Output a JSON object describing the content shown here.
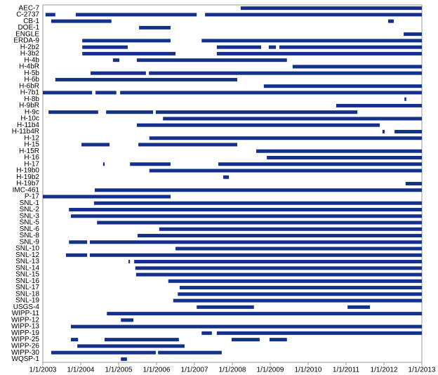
{
  "chart_data": {
    "type": "timeline",
    "color": "#13318a",
    "xlim": [
      2003,
      2013
    ],
    "xticks": [
      {
        "value": 2003,
        "label": "1/1/2003"
      },
      {
        "value": 2004,
        "label": "1/1/2004"
      },
      {
        "value": 2005,
        "label": "1/1/2005"
      },
      {
        "value": 2006,
        "label": "1/1/2006"
      },
      {
        "value": 2007,
        "label": "1/1/2007"
      },
      {
        "value": 2008,
        "label": "1/1/2008"
      },
      {
        "value": 2009,
        "label": "1/1/2009"
      },
      {
        "value": 2010,
        "label": "1/1/2010"
      },
      {
        "value": 2011,
        "label": "1/1/2011"
      },
      {
        "value": 2012,
        "label": "1/1/2012"
      },
      {
        "value": 2013,
        "label": "1/1/2013"
      }
    ],
    "categories": [
      "AEC-7",
      "C-2737",
      "CB-1",
      "DOE-1",
      "ENGLE",
      "ERDA-9",
      "H-2b2",
      "H-3b2",
      "H-4b",
      "H-4bR",
      "H-5b",
      "H-6b",
      "H-6bR",
      "H-7b1",
      "H-8b",
      "H-9bR",
      "H-9c",
      "H-10c",
      "H-11b4",
      "H-11b4R",
      "H-12",
      "H-15",
      "H-15R",
      "H-16",
      "H-17",
      "H-19b0",
      "H-19b2",
      "H-19b7",
      "IMC-461",
      "P-17",
      "SNL-1",
      "SNL-2",
      "SNL-3",
      "SNL-5",
      "SNL-6",
      "SNL-8",
      "SNL-9",
      "SNL-10",
      "SNL-12",
      "SNL-13",
      "SNL-14",
      "SNL-15",
      "SNL-16",
      "SNL-17",
      "SNL-18",
      "SNL-19",
      "USGS-4",
      "WIPP-11",
      "WIPP-12",
      "WIPP-13",
      "WIPP-19",
      "WIPP-25",
      "WIPP-26",
      "WIPP-30",
      "WQSP-1"
    ],
    "segments": [
      [
        [
          2008.22,
          2013
        ]
      ],
      [
        [
          2003.07,
          2003.33
        ],
        [
          2003.87,
          2007.06
        ],
        [
          2007.28,
          2013
        ]
      ],
      [
        [
          2003.22,
          2004.81
        ],
        [
          2012.11,
          2012.26
        ]
      ],
      [
        [
          2005.54,
          2006.37
        ]
      ],
      [
        [
          2012.52,
          2013
        ]
      ],
      [
        [
          2004.04,
          2006.37
        ],
        [
          2007.19,
          2013
        ]
      ],
      [
        [
          2004.04,
          2005.24
        ],
        [
          2007.59,
          2008.76
        ],
        [
          2008.96,
          2009.15
        ],
        [
          2009.24,
          2013
        ]
      ],
      [
        [
          2004.04,
          2006.5
        ],
        [
          2007.59,
          2013
        ]
      ],
      [
        [
          2004.85,
          2005.02
        ],
        [
          2005.48,
          2009.44
        ]
      ],
      [
        [
          2009.59,
          2013
        ]
      ],
      [
        [
          2004.26,
          2005.72
        ],
        [
          2005.8,
          2013
        ]
      ],
      [
        [
          2003.33,
          2008.13
        ]
      ],
      [
        [
          2008.83,
          2013
        ]
      ],
      [
        [
          2003,
          2004.3
        ],
        [
          2004.39,
          2004.94
        ],
        [
          2005.04,
          2013
        ]
      ],
      [
        [
          2012.54,
          2012.59
        ]
      ],
      [
        [
          2010.74,
          2013
        ]
      ],
      [
        [
          2003.15,
          2004.46
        ],
        [
          2004.67,
          2005.91
        ],
        [
          2005.98,
          2011.3
        ]
      ],
      [
        [
          2006.17,
          2013
        ]
      ],
      [
        [
          2005.48,
          2011.89
        ]
      ],
      [
        [
          2011.96,
          2012.02
        ],
        [
          2012.28,
          2013
        ]
      ],
      [
        [
          2005.81,
          2013
        ]
      ],
      [
        [
          2004.02,
          2004.76
        ],
        [
          2005.52,
          2008.13
        ]
      ],
      [
        [
          2008.63,
          2013
        ]
      ],
      [
        [
          2008.91,
          2013
        ]
      ],
      [
        [
          2004.59,
          2004.63
        ],
        [
          2005.3,
          2006.37
        ],
        [
          2007.63,
          2013
        ]
      ],
      [
        [
          2005.81,
          2013
        ]
      ],
      [
        [
          2007.76,
          2007.91
        ]
      ],
      [
        [
          2012.57,
          2013
        ]
      ],
      [
        [
          2004.37,
          2013
        ]
      ],
      [
        [
          2003,
          2006.37
        ]
      ],
      [
        [
          2004.35,
          2013
        ]
      ],
      [
        [
          2003.69,
          2013
        ]
      ],
      [
        [
          2003.74,
          2013
        ]
      ],
      [
        [
          2004.43,
          2013
        ]
      ],
      [
        [
          2006.07,
          2013
        ]
      ],
      [
        [
          2005.5,
          2013
        ]
      ],
      [
        [
          2003.69,
          2004.17
        ],
        [
          2004.24,
          2013
        ]
      ],
      [
        [
          2006.5,
          2013
        ]
      ],
      [
        [
          2003.61,
          2004.17
        ],
        [
          2004.24,
          2013
        ]
      ],
      [
        [
          2005.26,
          2005.3
        ],
        [
          2005.41,
          2013
        ]
      ],
      [
        [
          2005.44,
          2013
        ]
      ],
      [
        [
          2005.46,
          2013
        ]
      ],
      [
        [
          2006.31,
          2013
        ]
      ],
      [
        [
          2006.61,
          2013
        ]
      ],
      [
        [
          2006.56,
          2013
        ]
      ],
      [
        [
          2006.44,
          2013
        ]
      ],
      [
        [
          2007.06,
          2008.57
        ],
        [
          2011.04,
          2011.63
        ]
      ],
      [
        [
          2004.69,
          2013
        ]
      ],
      [
        [
          2005.06,
          2005.39
        ]
      ],
      [
        [
          2003.74,
          2013
        ]
      ],
      [
        [
          2007.19,
          2007.46
        ],
        [
          2007.59,
          2013
        ]
      ],
      [
        [
          2003.74,
          2003.93
        ],
        [
          2004.63,
          2006.59
        ],
        [
          2007.98,
          2008.72
        ],
        [
          2008.98,
          2009.44
        ]
      ],
      [
        [
          2003.91,
          2006.74
        ]
      ],
      [
        [
          2003.22,
          2005.98
        ],
        [
          2006.04,
          2007.72
        ]
      ],
      [
        [
          2005.06,
          2005.22
        ]
      ]
    ]
  }
}
